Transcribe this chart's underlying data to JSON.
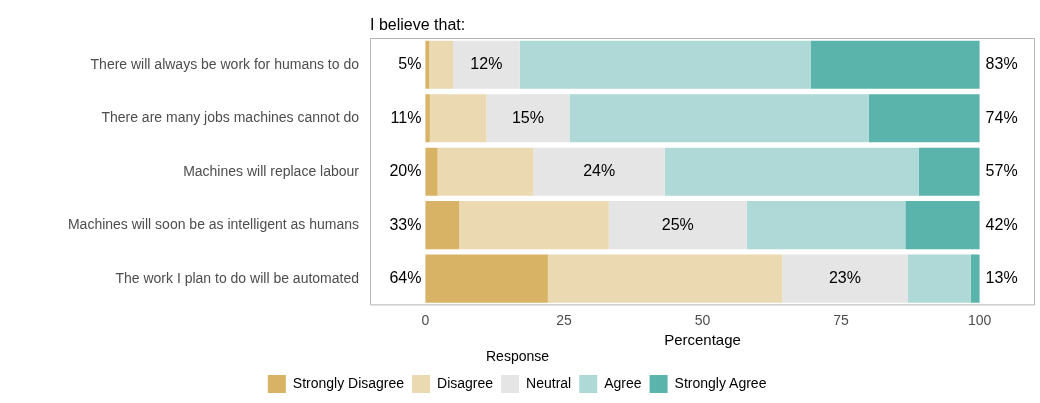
{
  "chart_data": {
    "type": "bar",
    "orientation": "horizontal",
    "stacked": true,
    "title": "I believe that:",
    "xlabel": "Percentage",
    "legend_title": "Response",
    "legend": "bottom",
    "grid": false,
    "categories": [
      "There will always be work for humans to do",
      "There are many jobs machines cannot do",
      "Machines will replace labour",
      "Machines will soon be as intelligent as humans",
      "The work I plan to do will be automated"
    ],
    "xlim": [
      -10,
      110
    ],
    "xticks": [
      0,
      25,
      50,
      75,
      100
    ],
    "series": [
      {
        "name": "Strongly Disagree",
        "color": "#d8b365",
        "values": [
          0.7,
          0.8,
          2.2,
          6.1,
          22.1
        ]
      },
      {
        "name": "Disagree",
        "color": "#ebd9b2",
        "values": [
          4.3,
          10.2,
          17.3,
          27,
          42.3
        ]
      },
      {
        "name": "Neutral",
        "color": "#e5e5e5",
        "values": [
          12,
          15,
          23.7,
          24.9,
          22.6
        ]
      },
      {
        "name": "Agree",
        "color": "#aed9d6",
        "values": [
          52.5,
          54,
          45.8,
          28.6,
          11.4
        ]
      },
      {
        "name": "Strongly Agree",
        "color": "#5ab4ac",
        "values": [
          30.5,
          20,
          11,
          13.4,
          1.6
        ]
      }
    ],
    "annotations": [
      "5%",
      "12%",
      "83%",
      "11%",
      "15%",
      "74%",
      "20%",
      "24%",
      "57%",
      "33%",
      "25%",
      "42%",
      "64%",
      "23%",
      "13%"
    ]
  }
}
